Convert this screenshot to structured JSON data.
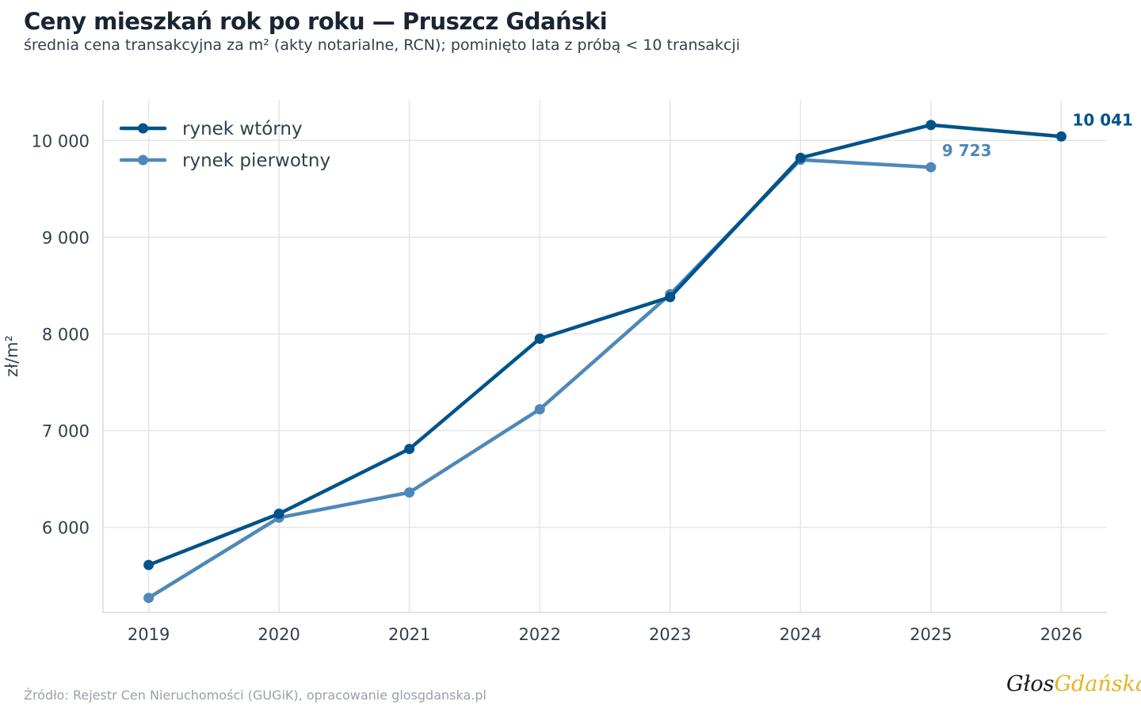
{
  "title": "Ceny mieszkań rok po roku — Pruszcz Gdański",
  "subtitle": "średnia cena transakcyjna za m² (akty notarialne, RCN); pominięto lata z próbą < 10 transakcji",
  "source": "Źródło: Rejestr Cen Nieruchomości (GUGiK), opracowanie glosgdanska.pl",
  "logo": {
    "part1": "Głos",
    "part2": "Gdańska"
  },
  "colors": {
    "secondary": "#00538a",
    "primary": "#4e88b8",
    "grid": "#e6e6e6",
    "text": "#333f4d"
  },
  "chart_data": {
    "type": "line",
    "title": "Ceny mieszkań rok po roku — Pruszcz Gdański",
    "xlabel": "",
    "ylabel": "zł/m²",
    "x": [
      2019,
      2020,
      2021,
      2022,
      2023,
      2024,
      2025,
      2026
    ],
    "xlim": [
      2018.65,
      2026.35
    ],
    "ylim": [
      5120,
      10420
    ],
    "yticks": [
      6000,
      7000,
      8000,
      9000,
      10000
    ],
    "ytick_labels": [
      "6 000",
      "7 000",
      "8 000",
      "9 000",
      "10 000"
    ],
    "grid": true,
    "legend_position": "top-left",
    "series": [
      {
        "name": "rynek wtórny",
        "color": "#00538a",
        "x": [
          2019,
          2020,
          2021,
          2022,
          2023,
          2024,
          2025,
          2026
        ],
        "values": [
          5610,
          6140,
          6810,
          7950,
          8380,
          9820,
          10160,
          10041
        ],
        "end_label": "10 041"
      },
      {
        "name": "rynek pierwotny",
        "color": "#4e88b8",
        "x": [
          2019,
          2020,
          2021,
          2022,
          2023,
          2024,
          2025
        ],
        "values": [
          5270,
          6100,
          6360,
          7220,
          8410,
          9800,
          9723
        ],
        "end_label": "9 723"
      }
    ]
  }
}
